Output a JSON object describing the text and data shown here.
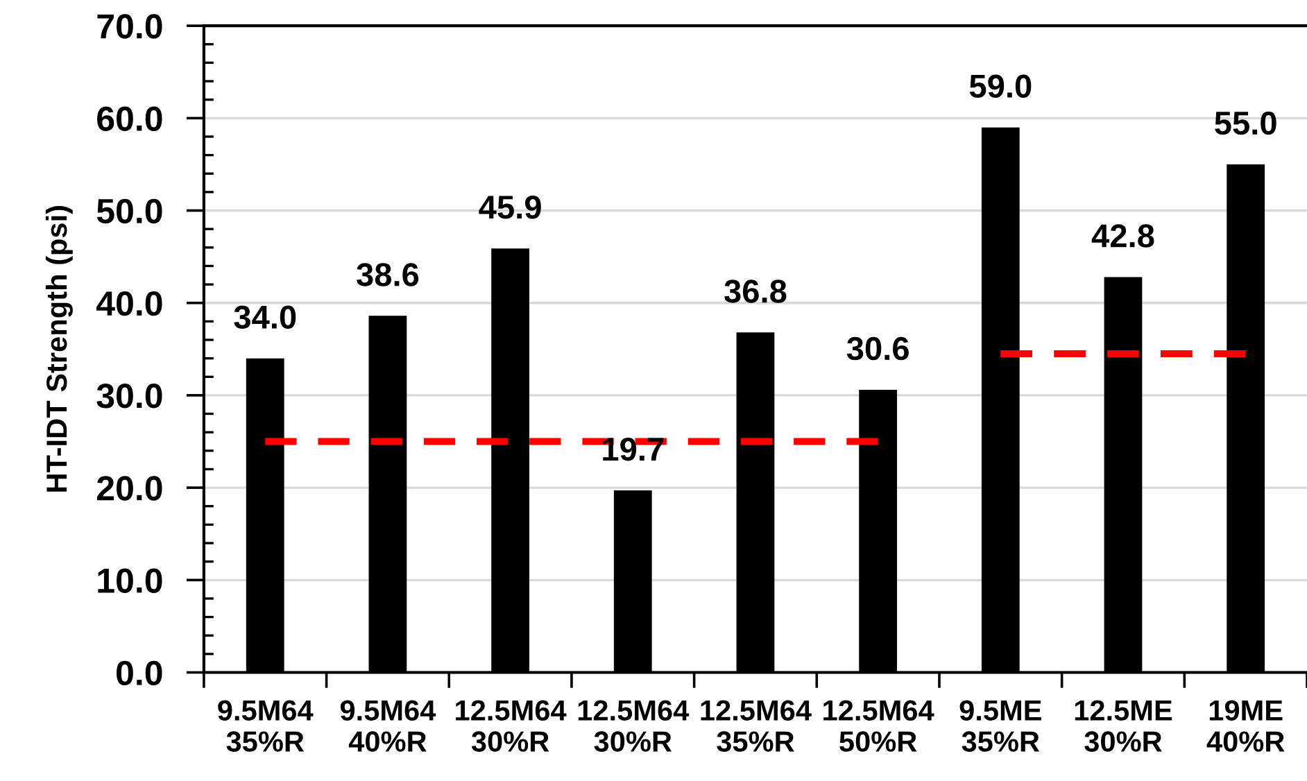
{
  "chart_data": {
    "type": "bar",
    "ylabel": "HT-IDT Strength (psi)",
    "categories": [
      "9.5M64\n35%R",
      "9.5M64\n40%R",
      "12.5M64\n30%R",
      "12.5M64\n30%R",
      "12.5M64\n35%R",
      "12.5M64\n50%R",
      "9.5ME\n35%R",
      "12.5ME\n30%R",
      "19ME\n40%R"
    ],
    "series": [
      {
        "color": "#000000",
        "values": [
          34.0,
          38.6,
          45.9,
          19.7,
          36.8,
          30.6,
          59.0,
          42.8,
          55.0
        ],
        "value_labels": [
          "34.0",
          "38.6",
          "45.9",
          "19.7",
          "36.8",
          "30.6",
          "59.0",
          "42.8",
          "55.0"
        ]
      },
      {
        "type": "line",
        "color": "#ff0000",
        "line_style": "dashed",
        "values": [
          25.0,
          25.0,
          25.0,
          25.0,
          25.0,
          25.0,
          null,
          null,
          null
        ]
      },
      {
        "type": "line",
        "color": "#ff0000",
        "line_style": "dashed",
        "values": [
          null,
          null,
          null,
          null,
          null,
          null,
          34.5,
          34.5,
          34.5
        ]
      }
    ],
    "ylim": [
      0,
      70
    ],
    "yticks": [
      {
        "value": 0,
        "label": "0.0"
      },
      {
        "value": 10,
        "label": "10.0"
      },
      {
        "value": 20,
        "label": "20.0"
      },
      {
        "value": 30,
        "label": "30.0"
      },
      {
        "value": 40,
        "label": "40.0"
      },
      {
        "value": 50,
        "label": "50.0"
      },
      {
        "value": 60,
        "label": "60.0"
      },
      {
        "value": 70,
        "label": "70.0"
      }
    ],
    "grid": "y"
  }
}
